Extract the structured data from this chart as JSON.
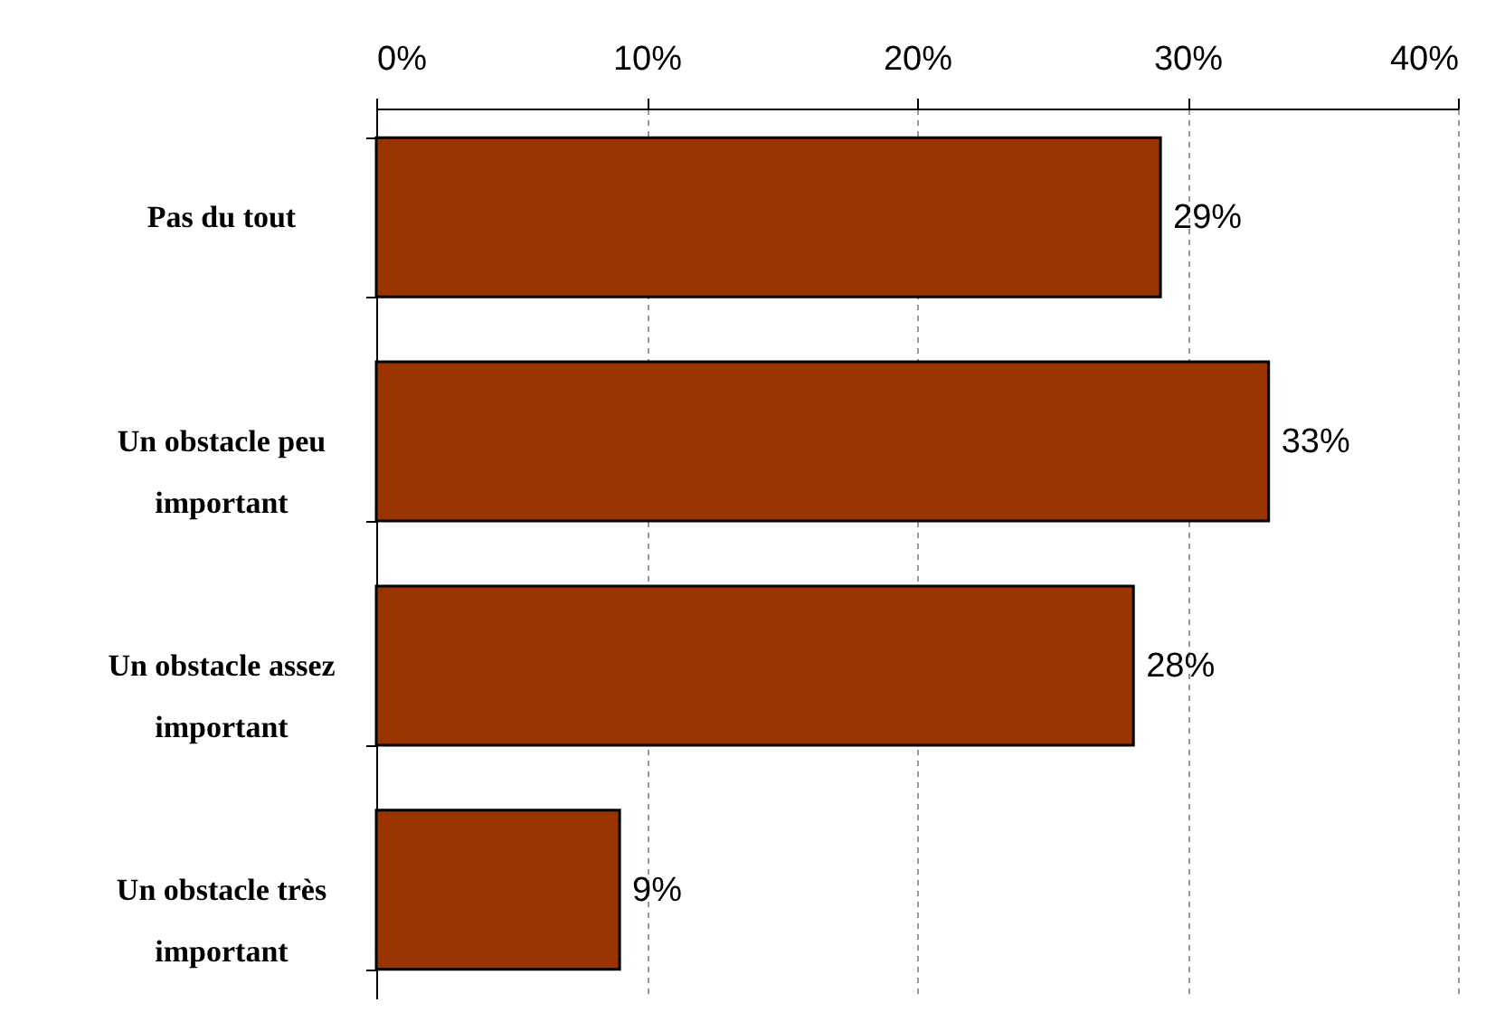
{
  "chart_data": {
    "type": "bar",
    "orientation": "horizontal",
    "categories": [
      "Pas du tout",
      "Un obstacle peu important",
      "Un obstacle assez important",
      "Un obstacle très important"
    ],
    "values": [
      29,
      33,
      28,
      9
    ],
    "value_labels": [
      "29%",
      "33%",
      "28%",
      "9%"
    ],
    "color": "#993300",
    "xlim": [
      0,
      40
    ],
    "xticks": [
      {
        "value": 0,
        "label": "0%"
      },
      {
        "value": 10,
        "label": "10%"
      },
      {
        "value": 20,
        "label": "20%"
      },
      {
        "value": 30,
        "label": "30%"
      },
      {
        "value": 40,
        "label": "40%"
      }
    ],
    "grid": "x"
  }
}
